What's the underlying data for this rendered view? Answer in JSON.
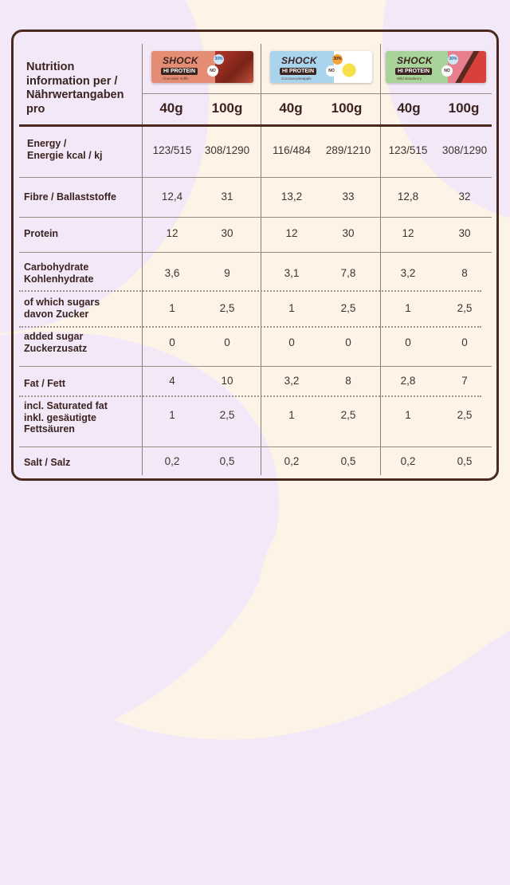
{
  "header": {
    "title": "Nutrition information per / Nährwertangaben pro"
  },
  "products": [
    {
      "brand": "SHOCK",
      "subbrand": "fitness",
      "tag": "HI PROTEIN",
      "flavor": "Chocolate truffle",
      "badge_protein": "30%",
      "badge_no": "NO",
      "wrapper_color": "#e58d74",
      "accent_color": "#9a2a1e",
      "sizes": [
        "40g",
        "100g"
      ]
    },
    {
      "brand": "SHOCK",
      "subbrand": "fitness",
      "tag": "HI PROTEIN",
      "flavor": "Coconut-pineapple",
      "badge_protein": "30%",
      "badge_no": "NO",
      "wrapper_color": "#a9d4ee",
      "accent_color": "#f4a23a",
      "sizes": [
        "40g",
        "100g"
      ]
    },
    {
      "brand": "SHOCK",
      "subbrand": "fitness",
      "tag": "HI PROTEIN",
      "flavor": "Wild strawberry",
      "badge_protein": "30%",
      "badge_no": "NO",
      "wrapper_color": "#a8d49a",
      "accent_color": "#e24c4c",
      "sizes": [
        "40g",
        "100g"
      ]
    }
  ],
  "rows": [
    {
      "label": "Energy / Energie kcal / kj",
      "values": [
        "123/515",
        "308/1290",
        "116/484",
        "289/1210",
        "123/515",
        "308/1290"
      ]
    },
    {
      "label": "Fibre / Ballaststoffe",
      "values": [
        "12,4",
        "31",
        "13,2",
        "33",
        "12,8",
        "32"
      ]
    },
    {
      "label": "Protein",
      "values": [
        "12",
        "30",
        "12",
        "30",
        "12",
        "30"
      ]
    },
    {
      "label": "Carbohydrate Kohlenhydrate",
      "values": [
        "3,6",
        "9",
        "3,1",
        "7,8",
        "3,2",
        "8"
      ]
    },
    {
      "label": "of which sugars davon Zucker",
      "values": [
        "1",
        "2,5",
        "1",
        "2,5",
        "1",
        "2,5"
      ]
    },
    {
      "label": "added sugar Zuckerzusatz",
      "values": [
        "0",
        "0",
        "0",
        "0",
        "0",
        "0"
      ]
    },
    {
      "label": "Fat / Fett",
      "values": [
        "4",
        "10",
        "3,2",
        "8",
        "2,8",
        "7"
      ]
    },
    {
      "label": "incl. Saturated fat inkl. gesäutigte Fettsäuren",
      "values": [
        "1",
        "2,5",
        "1",
        "2,5",
        "1",
        "2,5"
      ]
    },
    {
      "label": "Salt / Salz",
      "values": [
        "0,2",
        "0,5",
        "0,2",
        "0,5",
        "0,2",
        "0,5"
      ]
    }
  ],
  "row_label_lines": [
    [
      "Energy /",
      "Energie kcal / kj"
    ],
    [
      "Fibre / Ballaststoffe"
    ],
    [
      "Protein"
    ],
    [
      "Carbohydrate",
      "Kohlenhydrate"
    ],
    [
      "of which sugars",
      "davon Zucker"
    ],
    [
      "added sugar",
      "Zuckerzusatz"
    ],
    [
      "Fat / Fett"
    ],
    [
      "incl. Saturated fat",
      "inkl. gesäutigte",
      "Fettsäuren"
    ],
    [
      "Salt / Salz"
    ]
  ],
  "colors": {
    "background": "#f3e8f7",
    "panel": "#fdf3e7",
    "frame": "#4b2a1e",
    "text": "#3a2320"
  }
}
